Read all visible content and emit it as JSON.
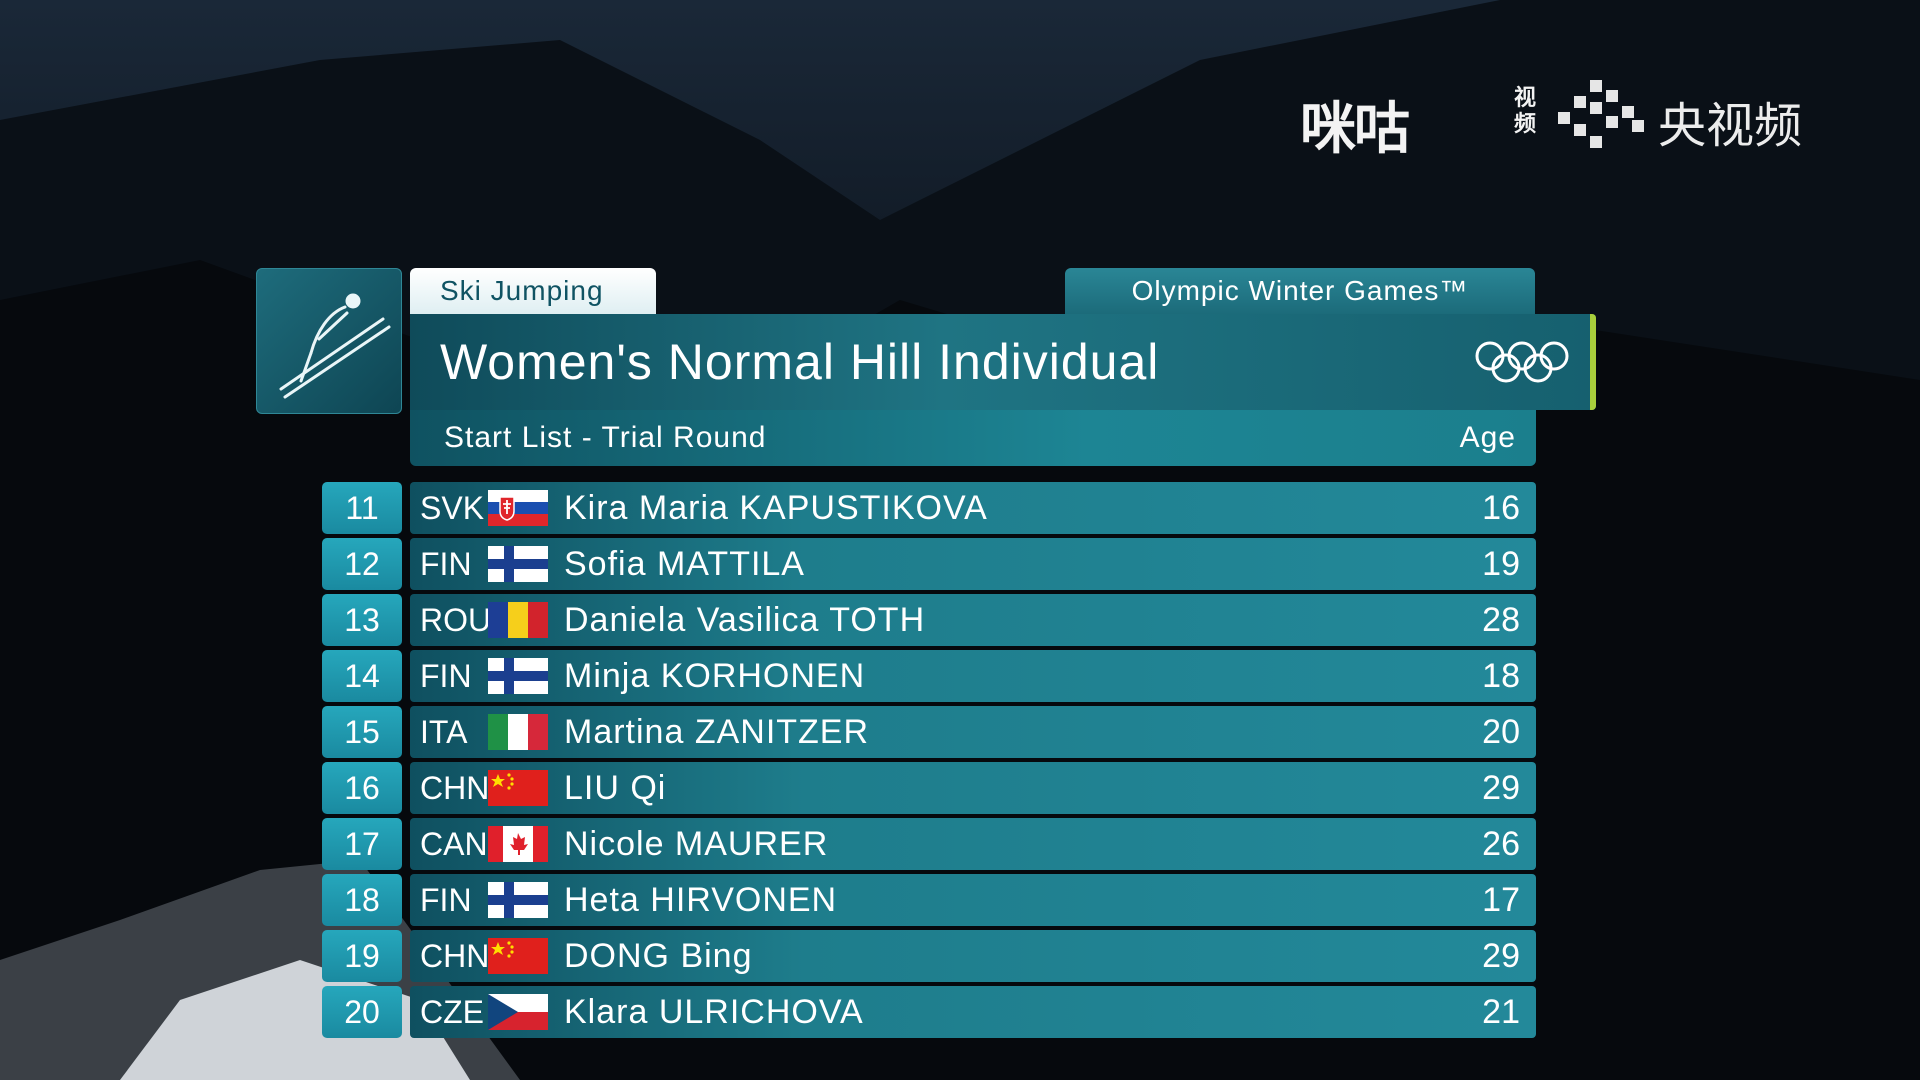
{
  "logos": {
    "migu_text": "咪咕",
    "migu_sub": "视频",
    "cctv_text": "央视频"
  },
  "header": {
    "sport": "Ski Jumping",
    "games": "Olympic Winter Games™",
    "event": "Women's Normal Hill Individual",
    "list_title": "Start List - Trial Round",
    "age_label": "Age"
  },
  "athletes": [
    {
      "num": "11",
      "nat": "SVK",
      "name": "Kira Maria KAPUSTIKOVA",
      "age": "16",
      "flag": "svk-flag-icon"
    },
    {
      "num": "12",
      "nat": "FIN",
      "name": "Sofia MATTILA",
      "age": "19",
      "flag": "fin-flag-icon"
    },
    {
      "num": "13",
      "nat": "ROU",
      "name": "Daniela Vasilica TOTH",
      "age": "28",
      "flag": "rou-flag-icon"
    },
    {
      "num": "14",
      "nat": "FIN",
      "name": "Minja KORHONEN",
      "age": "18",
      "flag": "fin-flag-icon"
    },
    {
      "num": "15",
      "nat": "ITA",
      "name": "Martina ZANITZER",
      "age": "20",
      "flag": "ita-flag-icon"
    },
    {
      "num": "16",
      "nat": "CHN",
      "name": "LIU Qi",
      "age": "29",
      "flag": "chn-flag-icon"
    },
    {
      "num": "17",
      "nat": "CAN",
      "name": "Nicole MAURER",
      "age": "26",
      "flag": "can-flag-icon"
    },
    {
      "num": "18",
      "nat": "FIN",
      "name": "Heta HIRVONEN",
      "age": "17",
      "flag": "fin-flag-icon"
    },
    {
      "num": "19",
      "nat": "CHN",
      "name": "DONG Bing",
      "age": "29",
      "flag": "chn-flag-icon"
    },
    {
      "num": "20",
      "nat": "CZE",
      "name": "Klara ULRICHOVA",
      "age": "21",
      "flag": "cze-flag-icon"
    }
  ],
  "colors": {
    "accent": "#a9cf3c",
    "teal": "#1e7d8c",
    "number_box": "#26a7bc"
  }
}
